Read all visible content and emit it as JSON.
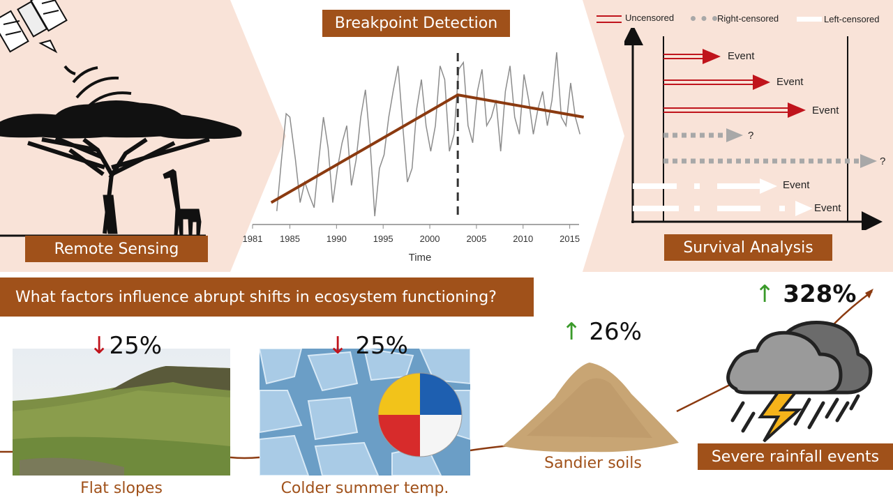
{
  "colors": {
    "panel_bg": "#f9e3d8",
    "accent": "#a0511a",
    "trend_line": "#8b3a10",
    "uncensored": "#c0141c",
    "right_censored": "#a8a8a8",
    "left_censored": "#ffffff",
    "down_arrow": "#c0141c",
    "up_arrow": "#3a9a2a"
  },
  "remote_sensing": {
    "label": "Remote Sensing"
  },
  "breakpoint": {
    "title": "Breakpoint Detection",
    "xlabel": "Time",
    "ticks": [
      "1981",
      "1985",
      "1990",
      "1995",
      "2000",
      "2005",
      "2010",
      "2015"
    ]
  },
  "survival": {
    "title": "Survival Analysis",
    "legend": {
      "uncensored": "Uncensored",
      "right": "Right-censored",
      "left": "Left-censored"
    },
    "events": [
      "Event",
      "Event",
      "Event",
      "?",
      "?",
      "Event",
      "Event"
    ]
  },
  "question": "What factors influence abrupt shifts in ecosystem functioning?",
  "factors": [
    {
      "arrow": "↓",
      "pct": "25%",
      "caption": "Flat slopes"
    },
    {
      "arrow": "↓",
      "pct": "25%",
      "caption": "Colder summer temp."
    },
    {
      "arrow": "↑",
      "pct": "26%",
      "caption": "Sandier soils"
    },
    {
      "arrow": "↑",
      "pct": "328%",
      "caption": "Severe rainfall events"
    }
  ],
  "chart_data": {
    "type": "line",
    "xlabel": "Time",
    "xlim": [
      1981,
      2016
    ],
    "x": [
      1983.6,
      1984.1,
      1984.6,
      1985.0,
      1985.6,
      1986.1,
      1986.6,
      1987.1,
      1987.6,
      1988.1,
      1988.6,
      1989.1,
      1989.6,
      1990.1,
      1990.6,
      1991.1,
      1991.6,
      1992.1,
      1992.6,
      1993.1,
      1993.6,
      1994.1,
      1994.6,
      1995.1,
      1995.6,
      1996.1,
      1996.6,
      1997.1,
      1997.6,
      1998.1,
      1998.6,
      1999.1,
      1999.6,
      2000.1,
      2000.6,
      2001.1,
      2001.6,
      2002.1,
      2002.6,
      2003.1,
      2003.6,
      2004.1,
      2004.6,
      2005.1,
      2005.6,
      2006.1,
      2006.6,
      2007.1,
      2007.6,
      2008.1,
      2008.6,
      2009.1,
      2009.6,
      2010.1,
      2010.6,
      2011.1,
      2011.6,
      2012.1,
      2012.6,
      2013.1,
      2013.6,
      2014.1,
      2014.6,
      2015.1,
      2015.6,
      2016.1
    ],
    "y": [
      0.05,
      0.35,
      0.62,
      0.6,
      0.35,
      0.1,
      0.22,
      0.14,
      0.07,
      0.35,
      0.6,
      0.42,
      0.1,
      0.3,
      0.45,
      0.55,
      0.2,
      0.35,
      0.6,
      0.76,
      0.45,
      0.02,
      0.3,
      0.38,
      0.6,
      0.76,
      0.9,
      0.55,
      0.22,
      0.3,
      0.65,
      0.82,
      0.55,
      0.4,
      0.55,
      0.9,
      0.82,
      0.4,
      0.5,
      0.88,
      0.92,
      0.55,
      0.45,
      0.75,
      0.88,
      0.55,
      0.6,
      0.7,
      0.4,
      0.75,
      0.9,
      0.6,
      0.5,
      0.85,
      0.7,
      0.5,
      0.65,
      0.75,
      0.55,
      0.7,
      0.98,
      0.6,
      0.55,
      0.8,
      0.6,
      0.5
    ],
    "breakpoint": 2003,
    "trend": [
      {
        "x": 1983,
        "y": 0.1
      },
      {
        "x": 2003,
        "y": 0.73
      },
      {
        "x": 2016.5,
        "y": 0.6
      }
    ]
  }
}
